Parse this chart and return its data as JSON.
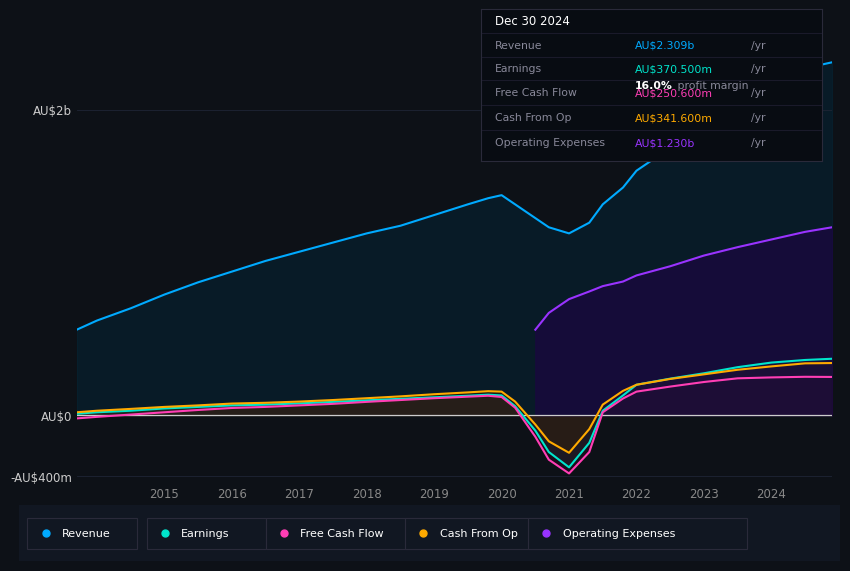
{
  "bg_color": "#0d1117",
  "plot_bg_color": "#0d1117",
  "grid_color": "#1e2535",
  "ylabel_au2b": "AU$2b",
  "ylabel_au0": "AU$0",
  "ylabel_minus": "-AU$400m",
  "years": [
    2013.7,
    2014.0,
    2014.5,
    2015.0,
    2015.5,
    2016.0,
    2016.5,
    2017.0,
    2017.5,
    2018.0,
    2018.5,
    2019.0,
    2019.5,
    2019.8,
    2020.0,
    2020.2,
    2020.5,
    2020.7,
    2021.0,
    2021.3,
    2021.5,
    2021.8,
    2022.0,
    2022.5,
    2023.0,
    2023.5,
    2024.0,
    2024.5,
    2024.9
  ],
  "revenue": [
    560,
    620,
    700,
    790,
    870,
    940,
    1010,
    1070,
    1130,
    1190,
    1240,
    1310,
    1380,
    1420,
    1440,
    1380,
    1290,
    1230,
    1190,
    1260,
    1380,
    1490,
    1600,
    1750,
    1900,
    2060,
    2180,
    2270,
    2309
  ],
  "earnings": [
    10,
    20,
    30,
    45,
    55,
    65,
    70,
    78,
    88,
    98,
    108,
    118,
    128,
    135,
    130,
    60,
    -100,
    -240,
    -340,
    -180,
    30,
    130,
    200,
    240,
    275,
    315,
    345,
    362,
    370
  ],
  "free_cash_flow": [
    -20,
    -10,
    5,
    20,
    35,
    48,
    55,
    65,
    75,
    88,
    100,
    112,
    122,
    128,
    120,
    50,
    -140,
    -290,
    -380,
    -240,
    20,
    110,
    155,
    188,
    218,
    242,
    248,
    252,
    251
  ],
  "cash_from_op": [
    20,
    30,
    42,
    55,
    65,
    77,
    82,
    90,
    100,
    112,
    124,
    138,
    150,
    158,
    155,
    90,
    -60,
    -170,
    -245,
    -90,
    70,
    160,
    200,
    238,
    268,
    298,
    320,
    340,
    342
  ],
  "operating_expenses": [
    0,
    0,
    0,
    0,
    0,
    0,
    0,
    0,
    0,
    0,
    0,
    0,
    0,
    0,
    0,
    0,
    560,
    670,
    760,
    810,
    845,
    875,
    915,
    975,
    1045,
    1100,
    1150,
    1200,
    1230
  ],
  "revenue_color": "#00aaff",
  "revenue_fill_color": "#0a2a40",
  "earnings_color": "#00e5cc",
  "earnings_fill_color": "#1a4a44",
  "fcf_color": "#ff3eb5",
  "fcf_fill_color": "#3a1a30",
  "cashop_color": "#ffaa00",
  "cashop_fill_color": "#3a2a00",
  "opex_color": "#9933ff",
  "opex_fill_color": "#2a1050",
  "x_ticks": [
    2015,
    2016,
    2017,
    2018,
    2019,
    2020,
    2021,
    2022,
    2023,
    2024
  ],
  "legend_items": [
    "Revenue",
    "Earnings",
    "Free Cash Flow",
    "Cash From Op",
    "Operating Expenses"
  ],
  "tooltip_title": "Dec 30 2024",
  "tooltip_revenue_label": "Revenue",
  "tooltip_revenue_val": "AU$2.309b",
  "tooltip_earnings_label": "Earnings",
  "tooltip_earnings_val": "AU$370.500m",
  "tooltip_margin_pct": "16.0%",
  "tooltip_margin_txt": "profit margin",
  "tooltip_fcf_label": "Free Cash Flow",
  "tooltip_fcf_val": "AU$250.600m",
  "tooltip_cashop_label": "Cash From Op",
  "tooltip_cashop_val": "AU$341.600m",
  "tooltip_opex_label": "Operating Expenses",
  "tooltip_opex_val": "AU$1.230b"
}
